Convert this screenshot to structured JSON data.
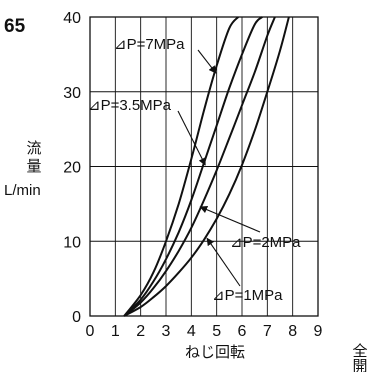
{
  "figure_number": "65",
  "chart_data": {
    "type": "line",
    "title": "",
    "xlabel": "ねじ回転",
    "xlabel_end": "全開",
    "ylabel_chars": [
      "流",
      "量"
    ],
    "ylabel_unit": "L/min",
    "xlim": [
      0,
      9
    ],
    "ylim": [
      0,
      40
    ],
    "x_ticks": [
      0,
      1,
      2,
      3,
      4,
      5,
      6,
      7,
      8,
      9
    ],
    "y_ticks": [
      0,
      10,
      20,
      30,
      40
    ],
    "grid": true,
    "legend": "none",
    "series": [
      {
        "name": "⊿P=7MPa",
        "x": [
          1.35,
          2.0,
          2.5,
          3.0,
          3.5,
          4.0,
          4.5,
          5.0,
          5.5,
          5.85
        ],
        "y": [
          0,
          2.8,
          5.8,
          10.0,
          15.0,
          21.0,
          27.5,
          33.5,
          38.5,
          40.0
        ]
      },
      {
        "name": "⊿P=3.5MPa",
        "x": [
          1.35,
          2.0,
          2.5,
          3.0,
          3.5,
          4.0,
          4.5,
          5.0,
          5.5,
          6.0,
          6.5,
          6.8
        ],
        "y": [
          0,
          2.2,
          4.6,
          7.6,
          11.2,
          15.5,
          20.5,
          25.5,
          30.5,
          35.0,
          39.0,
          40.0
        ]
      },
      {
        "name": "⊿P=2MPa",
        "x": [
          1.35,
          2.0,
          2.5,
          3.0,
          3.5,
          4.0,
          4.5,
          5.0,
          5.5,
          6.0,
          6.5,
          7.0,
          7.3
        ],
        "y": [
          0,
          1.8,
          3.7,
          6.0,
          8.7,
          11.8,
          15.5,
          19.5,
          23.8,
          28.2,
          32.6,
          37.5,
          40.0
        ]
      },
      {
        "name": "⊿P=1MPa",
        "x": [
          1.35,
          2.0,
          2.5,
          3.0,
          3.5,
          4.0,
          4.5,
          5.0,
          5.5,
          6.0,
          6.5,
          7.0,
          7.5,
          7.85
        ],
        "y": [
          0,
          1.2,
          2.5,
          4.0,
          5.8,
          7.8,
          10.2,
          13.0,
          16.3,
          20.2,
          24.8,
          30.0,
          35.5,
          40.0
        ]
      }
    ]
  }
}
